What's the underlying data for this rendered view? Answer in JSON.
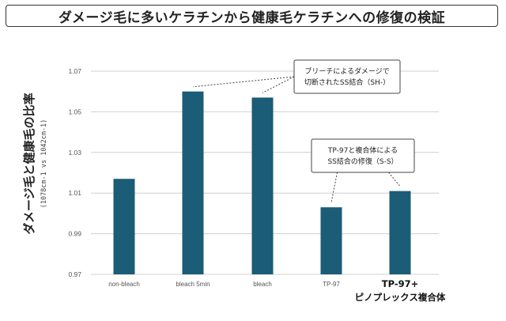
{
  "title": "ダメージ毛に多いケラチンから健康毛ケラチンへの修復の検証",
  "colors": {
    "bar": "#1b5c77",
    "grid": "#d0d0d0",
    "border": "#333333"
  },
  "chart_data": {
    "type": "bar",
    "categories": [
      "non-bleach",
      "bleach 5min",
      "bleach",
      "TP-97",
      "TP-97+ ピノプレックス複合体"
    ],
    "category_lines": [
      [
        "non-bleach"
      ],
      [
        "bleach 5min"
      ],
      [
        "bleach"
      ],
      [
        "TP-97"
      ],
      [
        "TP-97+",
        "ピノプレックス複合体"
      ]
    ],
    "values": [
      1.017,
      1.06,
      1.057,
      1.003,
      1.011
    ],
    "ylabel": "ダメージ毛と健康毛の比率",
    "ylabel_sub": "(1078cm-1 vs 1042cm-1)",
    "ylim": [
      0.97,
      1.07
    ],
    "yticks": [
      "0.97",
      "0.99",
      "1.01",
      "1.03",
      "1.05",
      "1.07"
    ],
    "grid": true,
    "annotations": [
      {
        "lines": [
          "ブリーチによるダメージで",
          "切断されたSS結合（SH-）"
        ],
        "targets": [
          "bleach 5min",
          "bleach"
        ]
      },
      {
        "lines": [
          "TP-97と複合体による",
          "SS結合の修復（S-S）"
        ],
        "targets": [
          "TP-97",
          "TP-97+ ピノプレックス複合体"
        ]
      }
    ]
  }
}
